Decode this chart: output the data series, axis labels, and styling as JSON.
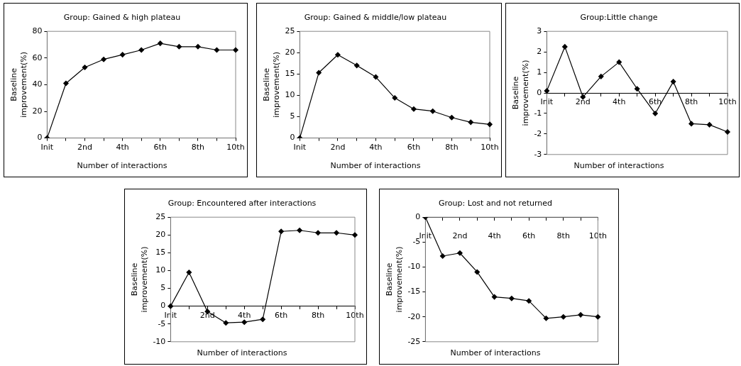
{
  "chart_data": [
    {
      "type": "line",
      "title": "Group: Gained & high plateau",
      "xlabel": "Number of interactions",
      "ylabel": "Baseline\nimprovement(%)",
      "categories": [
        "Init",
        null,
        "2nd",
        null,
        "4th",
        null,
        "6th",
        null,
        "8th",
        null,
        "10th"
      ],
      "color": "#000000",
      "marker": "diamond",
      "grid": false,
      "ylim": [
        0,
        80
      ],
      "yticks": [
        0,
        20,
        40,
        60,
        80
      ],
      "values": [
        0,
        41,
        53,
        59,
        62.5,
        66,
        71,
        68.5,
        68.5,
        66,
        66
      ]
    },
    {
      "type": "line",
      "title": "Group: Gained & middle/low plateau",
      "xlabel": "Number of interactions",
      "ylabel": "Baseline\nimprovement(%)",
      "categories": [
        "Init",
        null,
        "2nd",
        null,
        "4th",
        null,
        "6th",
        null,
        "8th",
        null,
        "10th"
      ],
      "color": "#000000",
      "marker": "diamond",
      "grid": false,
      "ylim": [
        0,
        25
      ],
      "yticks": [
        0,
        5,
        10,
        15,
        20,
        25
      ],
      "values": [
        0,
        15.3,
        19.5,
        17,
        14.3,
        9.4,
        6.8,
        6.3,
        4.8,
        3.7,
        3.2
      ]
    },
    {
      "type": "line",
      "title": "Group:Little change",
      "xlabel": "Number of interactions",
      "ylabel": "Baseline\nimprovement(%)",
      "categories": [
        "Init",
        null,
        "2nd",
        null,
        "4th",
        null,
        "6th",
        null,
        "8th",
        null,
        "10th"
      ],
      "color": "#000000",
      "marker": "diamond",
      "grid": false,
      "ylim": [
        -3,
        3
      ],
      "yticks": [
        -3,
        -2,
        -1,
        0,
        1,
        2,
        3
      ],
      "values": [
        0.1,
        2.25,
        -0.2,
        0.8,
        1.5,
        0.2,
        -1.0,
        0.55,
        -1.5,
        -1.55,
        -1.9
      ]
    },
    {
      "type": "line",
      "title": "Group: Encountered after interactions",
      "xlabel": "Number of interactions",
      "ylabel": "Baseline\nimprovement(%)",
      "categories": [
        "Init",
        null,
        "2nd",
        null,
        "4th",
        null,
        "6th",
        null,
        "8th",
        null,
        "10th"
      ],
      "color": "#000000",
      "marker": "diamond",
      "grid": false,
      "ylim": [
        -10,
        25
      ],
      "yticks": [
        -10,
        -5,
        0,
        5,
        10,
        15,
        20,
        25
      ],
      "values": [
        0,
        9.5,
        -1.5,
        -4.7,
        -4.5,
        -3.7,
        21,
        21.3,
        20.6,
        20.6,
        20
      ]
    },
    {
      "type": "line",
      "title": "Group: Lost and not returned",
      "xlabel": "Number of interactions",
      "ylabel": "Baseline\nimprovement(%)",
      "categories": [
        "Init",
        null,
        "2nd",
        null,
        "4th",
        null,
        "6th",
        null,
        "8th",
        null,
        "10th"
      ],
      "color": "#000000",
      "marker": "diamond",
      "grid": false,
      "ylim": [
        -25,
        0
      ],
      "yticks": [
        -25,
        -20,
        -15,
        -10,
        -5,
        0
      ],
      "values": [
        0,
        -7.8,
        -7.2,
        -11,
        -16,
        -16.3,
        -16.8,
        -20.3,
        -20,
        -19.6,
        -20
      ]
    }
  ]
}
